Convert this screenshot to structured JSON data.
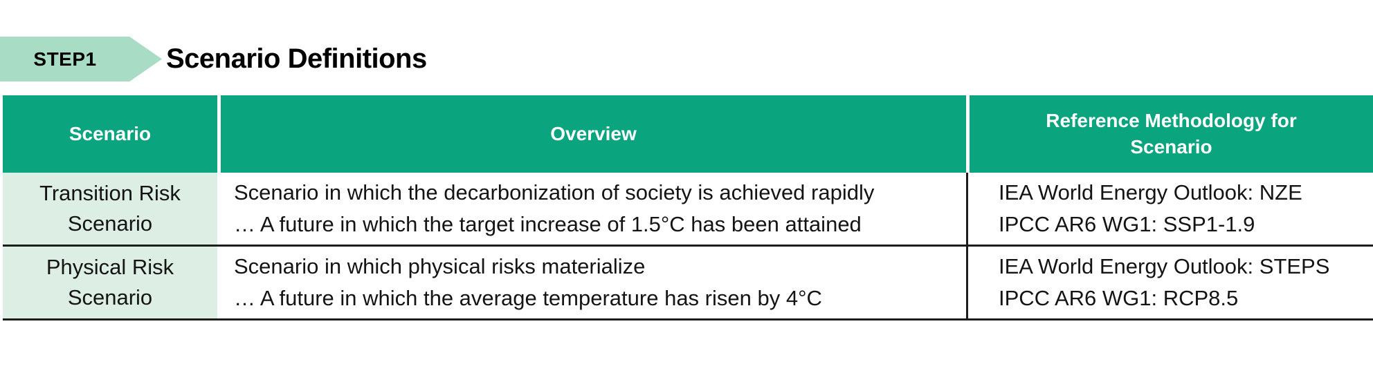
{
  "step_badge": {
    "label": "STEP1"
  },
  "page_title": "Scenario Definitions",
  "colors": {
    "header_bg": "#0aa57e",
    "header_text": "#ffffff",
    "row_label_bg": "#ddeee5",
    "badge_bg": "#a9dcc4",
    "border_dark": "#1c1c1c"
  },
  "table": {
    "columns": [
      {
        "label": "Scenario"
      },
      {
        "label": "Overview"
      },
      {
        "label": "Reference Methodology for\nScenario"
      }
    ],
    "rows": [
      {
        "scenario": "Transition Risk Scenario",
        "overview_lines": [
          "Scenario in which the decarbonization of society is achieved rapidly",
          "… A future in which the target increase of 1.5°C has been attained"
        ],
        "reference_lines": [
          "IEA World Energy Outlook: NZE",
          "IPCC AR6 WG1: SSP1-1.9"
        ]
      },
      {
        "scenario": "Physical Risk Scenario",
        "overview_lines": [
          "Scenario in which physical risks materialize",
          "… A future in which the average temperature has risen by 4°C"
        ],
        "reference_lines": [
          "IEA World Energy Outlook: STEPS",
          "IPCC AR6 WG1: RCP8.5"
        ]
      }
    ]
  }
}
